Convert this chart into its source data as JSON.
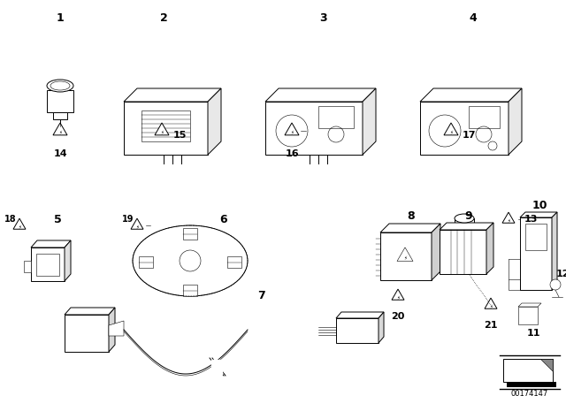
{
  "bg_color": "#ffffff",
  "part_number": "00174147",
  "lw": 0.7,
  "lw_thin": 0.4,
  "lw_thick": 1.0,
  "fs_label": 8,
  "fs_num": 9
}
